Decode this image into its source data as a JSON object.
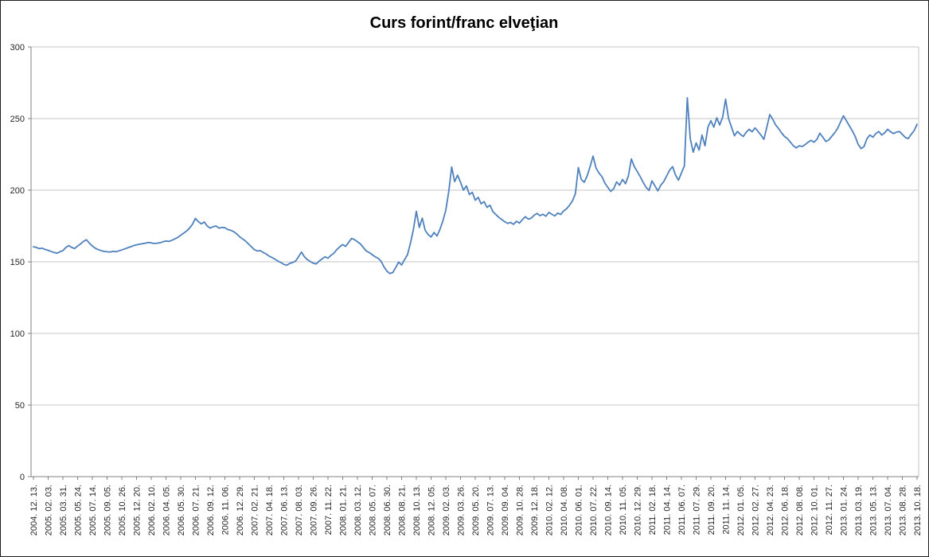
{
  "chart_data": {
    "type": "line",
    "title": "Curs forint/franc elveţian",
    "xlabel": "",
    "ylabel": "",
    "ylim": [
      0,
      300
    ],
    "y_ticks": [
      0,
      50,
      100,
      150,
      200,
      250,
      300
    ],
    "grid": true,
    "legend_position": "none",
    "background_color": "#FFFFFF",
    "gridline_color": "#C6C6C6",
    "axis_color": "#808080",
    "line_color": "#4F81BD",
    "samples_per_label_interval": 5,
    "x_labels": [
      "2004. 12. 13.",
      "2005. 02. 03.",
      "2005. 03. 31.",
      "2005. 05. 24.",
      "2005. 07. 14.",
      "2005. 09. 05.",
      "2005. 10. 26.",
      "2005. 12. 20.",
      "2006. 02. 10.",
      "2006. 04. 05.",
      "2006. 05. 30.",
      "2006. 07. 21.",
      "2006. 09. 12.",
      "2006. 11. 06.",
      "2006. 12. 29.",
      "2007. 02. 21.",
      "2007. 04. 18.",
      "2007. 06. 13.",
      "2007. 08. 03.",
      "2007. 09. 26.",
      "2007. 11. 22.",
      "2008. 01. 21.",
      "2008. 03. 12.",
      "2008. 05. 07.",
      "2008. 06. 30.",
      "2008. 08. 21.",
      "2008. 10. 13.",
      "2008. 12. 05.",
      "2009. 02. 03.",
      "2009. 03. 26.",
      "2009. 05. 20.",
      "2009. 07. 13.",
      "2009. 09. 04.",
      "2009. 10. 28.",
      "2009. 12. 18.",
      "2010. 02. 12.",
      "2010. 04. 08.",
      "2010. 06. 01.",
      "2010. 07. 22.",
      "2010. 09. 14.",
      "2010. 11. 05.",
      "2010. 12. 29.",
      "2011. 02. 18.",
      "2011. 04. 14.",
      "2011. 06. 07.",
      "2011. 07. 29.",
      "2011. 09. 20.",
      "2011. 11. 14.",
      "2012. 01. 05.",
      "2012. 02. 27.",
      "2012. 04. 23.",
      "2012. 06. 18.",
      "2012. 08. 08.",
      "2012. 10. 01.",
      "2012. 11. 27.",
      "2013. 01. 24.",
      "2013. 03. 19.",
      "2013. 05. 13.",
      "2013. 07. 04.",
      "2013. 08. 28.",
      "2013. 10. 18."
    ],
    "series": [
      {
        "name": "Curs forint/franc elveţian",
        "color": "#4F81BD",
        "values": [
          160.5,
          160.0,
          159.2,
          159.5,
          158.6,
          158.0,
          157.2,
          156.5,
          156.0,
          157.0,
          157.8,
          160.0,
          161.3,
          160.0,
          159.3,
          161.0,
          162.5,
          164.2,
          165.4,
          163.0,
          161.0,
          159.5,
          158.5,
          157.8,
          157.2,
          157.0,
          156.8,
          157.3,
          157.0,
          157.6,
          158.3,
          159.0,
          159.8,
          160.5,
          161.3,
          161.8,
          162.3,
          162.6,
          163.0,
          163.5,
          163.2,
          162.8,
          163.0,
          163.3,
          164.0,
          164.5,
          164.2,
          165.0,
          166.0,
          167.0,
          168.5,
          170.0,
          171.5,
          173.5,
          176.2,
          180.3,
          178.0,
          176.5,
          177.8,
          175.0,
          173.5,
          174.5,
          175.0,
          173.5,
          174.0,
          173.8,
          172.5,
          172.0,
          171.0,
          169.5,
          167.5,
          166.0,
          164.5,
          162.5,
          160.5,
          158.5,
          157.5,
          157.8,
          156.5,
          155.5,
          154.0,
          153.0,
          151.8,
          150.5,
          149.5,
          148.2,
          147.6,
          148.8,
          149.5,
          150.5,
          153.5,
          156.8,
          153.5,
          151.5,
          150.2,
          149.0,
          148.5,
          150.5,
          152.0,
          153.5,
          152.5,
          154.5,
          156.0,
          158.5,
          160.5,
          162.0,
          160.8,
          163.5,
          166.3,
          165.5,
          164.0,
          162.5,
          160.0,
          157.5,
          156.5,
          155.0,
          153.5,
          152.5,
          150.5,
          146.5,
          143.5,
          141.8,
          142.5,
          146.0,
          149.8,
          147.8,
          151.5,
          155.0,
          163.0,
          172.5,
          185.3,
          174.0,
          180.5,
          172.0,
          169.0,
          167.3,
          170.5,
          168.0,
          172.5,
          178.5,
          186.0,
          199.0,
          216.2,
          206.0,
          210.5,
          205.5,
          200.0,
          203.0,
          197.0,
          198.5,
          193.0,
          195.0,
          190.5,
          192.0,
          188.0,
          189.5,
          185.0,
          183.0,
          181.0,
          179.5,
          178.0,
          176.8,
          177.5,
          176.2,
          178.3,
          177.0,
          179.5,
          181.5,
          179.8,
          180.5,
          182.5,
          183.8,
          182.2,
          183.2,
          181.8,
          184.5,
          183.2,
          182.0,
          184.0,
          183.0,
          185.5,
          187.0,
          189.5,
          192.5,
          197.5,
          215.8,
          207.5,
          205.5,
          210.0,
          216.5,
          223.8,
          215.5,
          212.0,
          209.5,
          205.0,
          202.0,
          199.2,
          201.0,
          205.8,
          203.5,
          207.5,
          204.5,
          210.0,
          221.8,
          216.5,
          213.0,
          209.5,
          205.5,
          202.0,
          199.8,
          206.5,
          203.0,
          199.5,
          203.5,
          206.0,
          210.0,
          214.0,
          216.5,
          210.5,
          207.0,
          212.0,
          217.0,
          264.5,
          236.0,
          226.5,
          233.0,
          228.0,
          238.5,
          231.0,
          244.0,
          248.5,
          244.0,
          250.5,
          245.5,
          251.0,
          263.5,
          250.0,
          244.0,
          238.0,
          241.0,
          239.0,
          237.5,
          240.5,
          242.5,
          240.8,
          243.5,
          241.0,
          238.5,
          235.5,
          244.0,
          252.8,
          249.5,
          245.5,
          243.0,
          240.0,
          237.5,
          236.0,
          233.5,
          231.0,
          229.5,
          231.0,
          230.5,
          231.8,
          233.5,
          234.8,
          233.5,
          235.5,
          239.8,
          237.0,
          234.0,
          235.0,
          237.5,
          240.0,
          243.0,
          247.5,
          252.0,
          248.5,
          245.0,
          241.5,
          237.5,
          232.0,
          229.0,
          230.5,
          236.0,
          238.5,
          237.0,
          239.5,
          241.0,
          238.5,
          240.0,
          242.5,
          240.8,
          239.5,
          240.5,
          241.0,
          239.0,
          236.8,
          236.0,
          239.0,
          241.5,
          246.0
        ]
      }
    ]
  }
}
